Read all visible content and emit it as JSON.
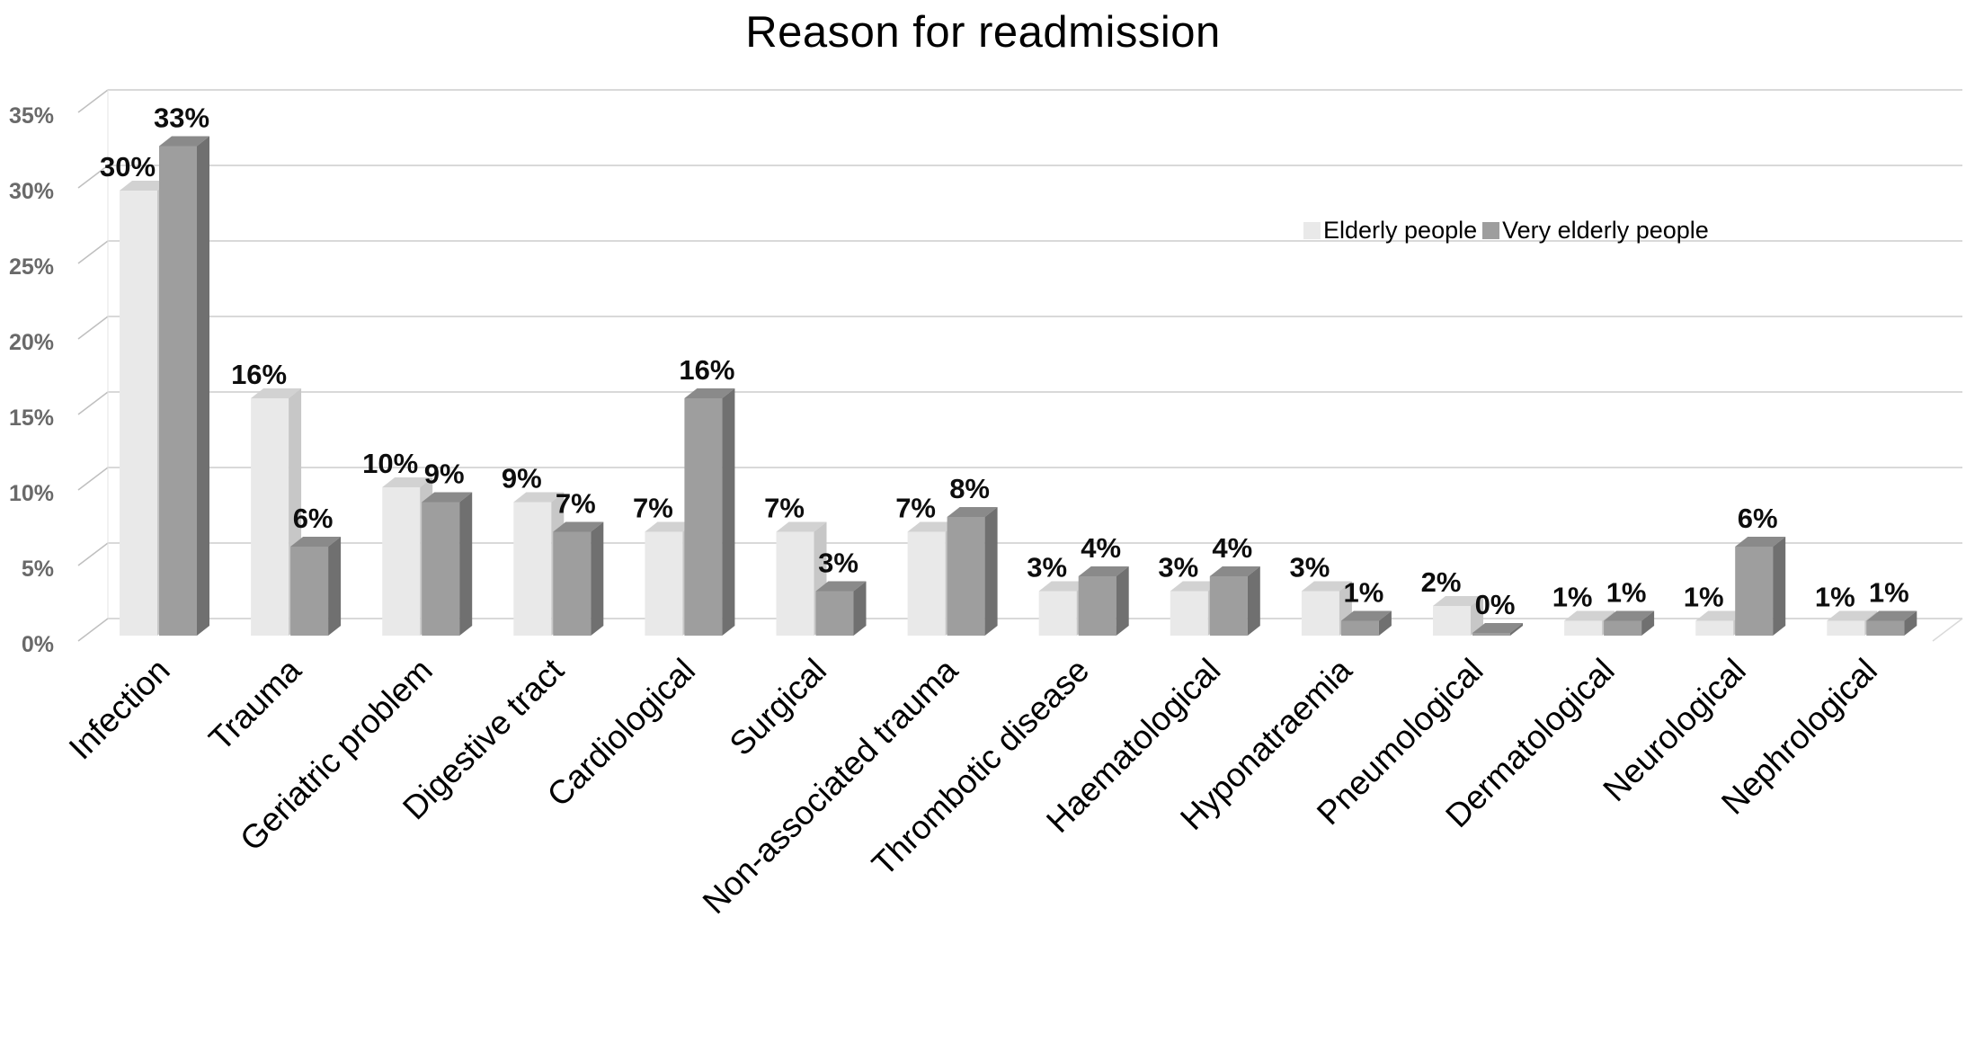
{
  "chart_data": {
    "type": "bar",
    "title": "Reason for readmission",
    "categories": [
      "Infection",
      "Trauma",
      "Geriatric problem",
      "Digestive tract",
      "Cardiological",
      "Surgical",
      "Non-associated trauma",
      "Thrombotic disease",
      "Haematological",
      "Hyponatraemia",
      "Pneumological",
      "Dermatological",
      "Neurological",
      "Nephrological"
    ],
    "series": [
      {
        "name": "Elderly people",
        "values": [
          30,
          16,
          10,
          9,
          7,
          7,
          7,
          3,
          3,
          3,
          2,
          1,
          1,
          1
        ],
        "color": "#e9e9e9",
        "top_color": "#d2d2d2",
        "side_color": "#c7c7c7"
      },
      {
        "name": "Very elderly people",
        "values": [
          33,
          6,
          9,
          7,
          16,
          3,
          8,
          4,
          4,
          1,
          0,
          1,
          6,
          1
        ],
        "color": "#9e9e9e",
        "top_color": "#8a8a8a",
        "side_color": "#707070"
      }
    ],
    "value_suffix": "%",
    "y_ticks": [
      "0%",
      "5%",
      "10%",
      "15%",
      "20%",
      "25%",
      "30%",
      "35%"
    ],
    "ylim": [
      0,
      35
    ],
    "grid": true,
    "style": "3d-column",
    "legend_position": "upper-right",
    "colors": {
      "grid": "#d9d9d9",
      "connector": "#bfbfbf",
      "wall_edge": "#e3e3e3",
      "axis_label": "#696969",
      "data_label": "#0d0d0d",
      "category_label": "#000000",
      "background": "#ffffff"
    }
  }
}
